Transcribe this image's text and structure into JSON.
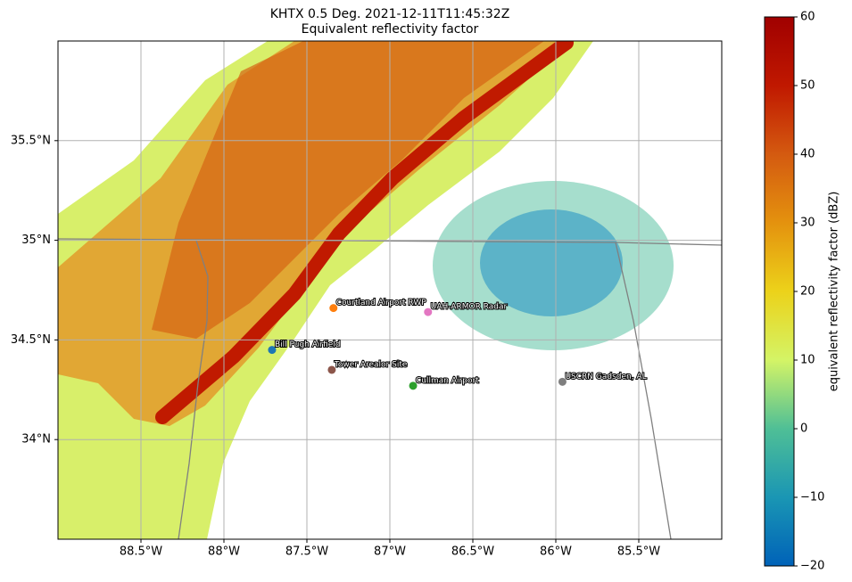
{
  "map": {
    "title": "KHTX 0.5 Deg. 2021-12-11T11:45:32Z",
    "subtitle": "Equivalent reflectivity factor",
    "xlim": [
      -89.0,
      -85.0
    ],
    "ylim": [
      33.5,
      36.0
    ],
    "xticks": [
      {
        "value": -88.5,
        "label": "88.5°W"
      },
      {
        "value": -88.0,
        "label": "88°W"
      },
      {
        "value": -87.5,
        "label": "87.5°W"
      },
      {
        "value": -87.0,
        "label": "87°W"
      },
      {
        "value": -86.5,
        "label": "86.5°W"
      },
      {
        "value": -86.0,
        "label": "86°W"
      },
      {
        "value": -85.5,
        "label": "85.5°W"
      }
    ],
    "yticks": [
      {
        "value": 34.0,
        "label": "34°N"
      },
      {
        "value": 34.5,
        "label": "34.5°N"
      },
      {
        "value": 35.0,
        "label": "35°N"
      },
      {
        "value": 35.5,
        "label": "35.5°N"
      }
    ],
    "grid": true,
    "stations": [
      {
        "name": "Courtland Airport RWP",
        "lon": -87.34,
        "lat": 34.66,
        "color": "#ff7f0e"
      },
      {
        "name": "UAH-ARMOR Radar",
        "lon": -86.77,
        "lat": 34.64,
        "color": "#e377c2"
      },
      {
        "name": "Bill Pugh Airfield",
        "lon": -87.71,
        "lat": 34.45,
        "color": "#1f77b4"
      },
      {
        "name": "Tower Arealor Site",
        "lon": -87.35,
        "lat": 34.35,
        "color": "#8c564b"
      },
      {
        "name": "Cullman Airport",
        "lon": -86.86,
        "lat": 34.27,
        "color": "#2ca02c"
      },
      {
        "name": "USCRN Gadsden, AL",
        "lon": -85.96,
        "lat": 34.29,
        "color": "#7f7f7f"
      }
    ],
    "colorbar": {
      "label": "equivalent reflectivity factor (dBZ)",
      "lim": [
        -20,
        60
      ],
      "ticks": [
        {
          "value": -20,
          "label": "−20"
        },
        {
          "value": -10,
          "label": "−10"
        },
        0,
        10,
        20,
        30,
        40,
        50,
        60
      ]
    }
  }
}
